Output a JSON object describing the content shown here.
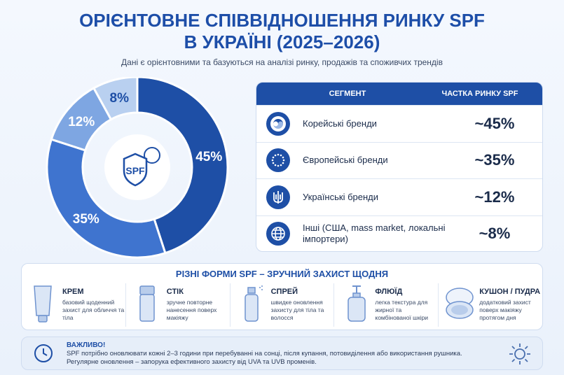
{
  "header": {
    "title_line1": "ОРІЄНТОВНЕ СПІВВІДНОШЕННЯ РИНКУ SPF",
    "title_line2": "В УКРАЇНІ (2025–2026)",
    "subtitle": "Дані є орієнтовними та базуються на аналізі ринку, продажів та споживчих трендів"
  },
  "chart_data": {
    "type": "pie",
    "center_label": "SPF",
    "categories": [
      "Корейські бренди",
      "Європейські бренди",
      "Українські бренди",
      "Інші (США, mass market, локальні імпортери)"
    ],
    "values": [
      45,
      35,
      12,
      8
    ],
    "labels": [
      "45%",
      "35%",
      "12%",
      "8%"
    ],
    "colors": [
      "#1e4fa6",
      "#3f74cf",
      "#7ea6e2",
      "#b9d0f0"
    ]
  },
  "table": {
    "col_segment": "СЕГМЕНТ",
    "col_share": "ЧАСТКА РИНКУ SPF",
    "rows": [
      {
        "segment": "Корейські бренди",
        "share": "~45%",
        "icon": "korea-flag-icon"
      },
      {
        "segment": "Європейські бренди",
        "share": "~35%",
        "icon": "eu-flag-icon"
      },
      {
        "segment": "Українські бренди",
        "share": "~12%",
        "icon": "ukraine-trident-icon"
      },
      {
        "segment": "Інші (США, mass market, локальні імпортери)",
        "share": "~8%",
        "icon": "globe-icon"
      }
    ]
  },
  "forms": {
    "title": "РІЗНІ ФОРМИ SPF – ЗРУЧНИЙ ЗАХИСТ ЩОДНЯ",
    "items": [
      {
        "name": "КРЕМ",
        "desc": "базовий щоденний захист для обличчя та тіла",
        "icon": "cream-tube-icon"
      },
      {
        "name": "СТІК",
        "desc": "зручне повторне нанесення поверх макіяжу",
        "icon": "stick-icon"
      },
      {
        "name": "СПРЕЙ",
        "desc": "швидке оновлення захисту для тіла та волосся",
        "icon": "spray-icon"
      },
      {
        "name": "ФЛЮЇД",
        "desc": "легка текстура для жирної та комбінованої шкіри",
        "icon": "fluid-pump-icon"
      },
      {
        "name": "КУШОН / ПУДРА",
        "desc": "додатковий захист поверх макіяжу протягом дня",
        "icon": "cushion-compact-icon"
      }
    ]
  },
  "note": {
    "heading": "ВАЖЛИВО!",
    "line1": "SPF потрібно оновлювати кожні 2–3 години при перебуванні на сонці, після купання, потовиділення або використання рушника.",
    "line2": "Регулярне оновлення – запорука ефективного захисту від UVA та UVB променів."
  }
}
